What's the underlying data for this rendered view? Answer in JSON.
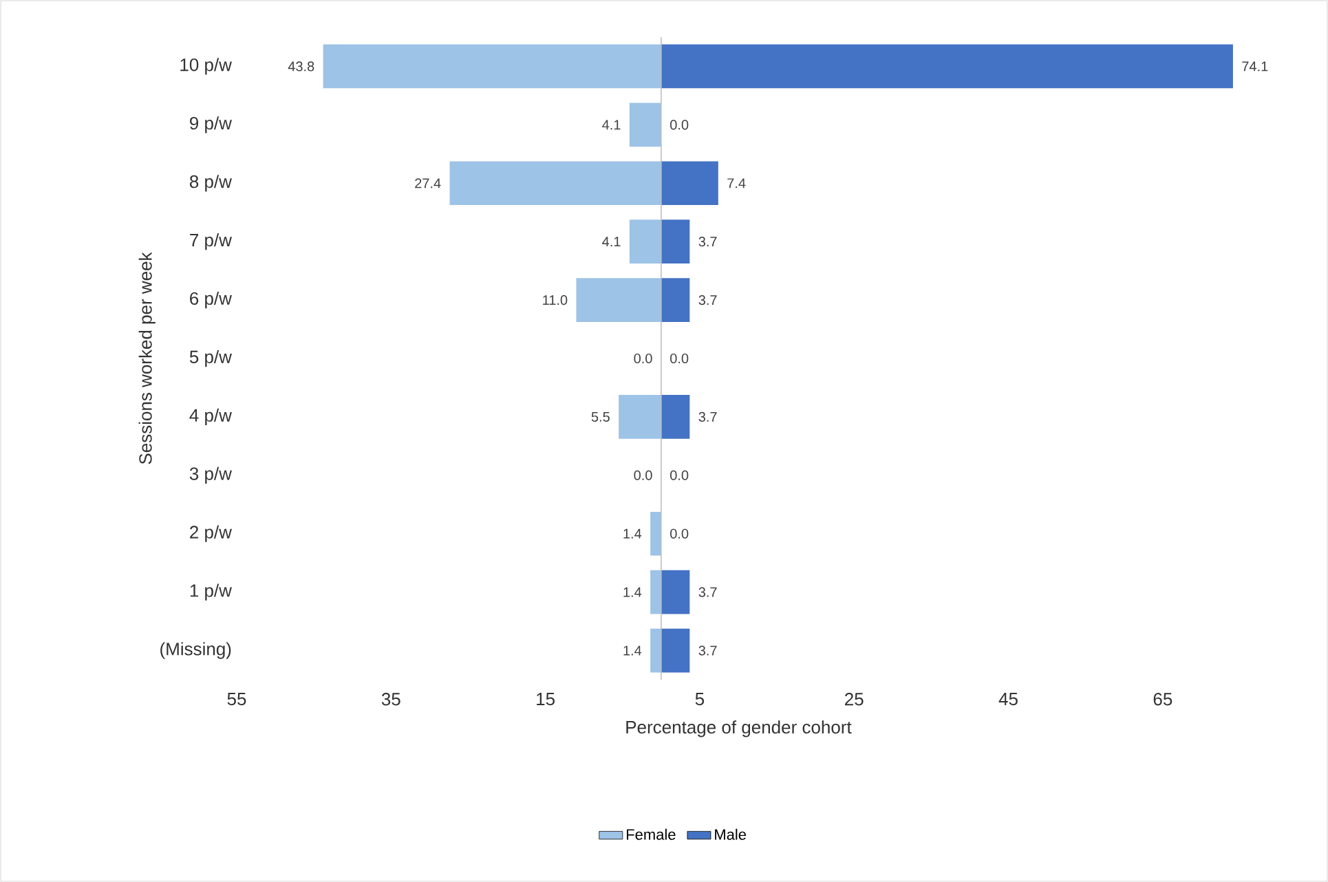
{
  "chart_data": {
    "type": "bar",
    "orientation": "horizontal",
    "xlabel": "Percentage of gender cohort",
    "ylabel": "Sessions worked per week",
    "categories": [
      "10 p/w",
      "9 p/w",
      "8 p/w",
      "7 p/w",
      "6 p/w",
      "5 p/w",
      "4 p/w",
      "3 p/w",
      "2 p/w",
      "1 p/w",
      "(Missing)"
    ],
    "series": [
      {
        "name": "Female",
        "color": "#9dc3e6",
        "values": [
          43.8,
          4.1,
          27.4,
          4.1,
          11.0,
          0.0,
          5.5,
          0.0,
          1.4,
          1.4,
          1.4
        ],
        "base": [
          -43.8,
          -4.1,
          -27.4,
          -4.1,
          -11.0,
          null,
          -5.5,
          null,
          -1.4,
          -1.4,
          -1.4
        ],
        "value_labels": [
          "43.8",
          "4.1",
          "27.4",
          "4.1",
          "11.0",
          "0.0",
          "5.5",
          "0.0",
          "1.4",
          "1.4",
          "1.4"
        ]
      },
      {
        "name": "Male",
        "color": "#4472c4",
        "values": [
          74.1,
          0.0,
          7.4,
          3.7,
          3.7,
          0.0,
          3.7,
          0.0,
          0.0,
          3.7,
          3.7
        ],
        "value_labels": [
          "74.1",
          "0.0",
          "7.4",
          "3.7",
          "3.7",
          "0.0",
          "3.7",
          "0.0",
          "0.0",
          "3.7",
          "3.7"
        ]
      }
    ],
    "xlim": [
      -55,
      75
    ],
    "xticks": [
      {
        "value": -55,
        "label": "55"
      },
      {
        "value": -35,
        "label": "35"
      },
      {
        "value": -15,
        "label": "15"
      },
      5,
      25,
      45,
      65
    ],
    "grid": false,
    "legend": "bottom"
  }
}
